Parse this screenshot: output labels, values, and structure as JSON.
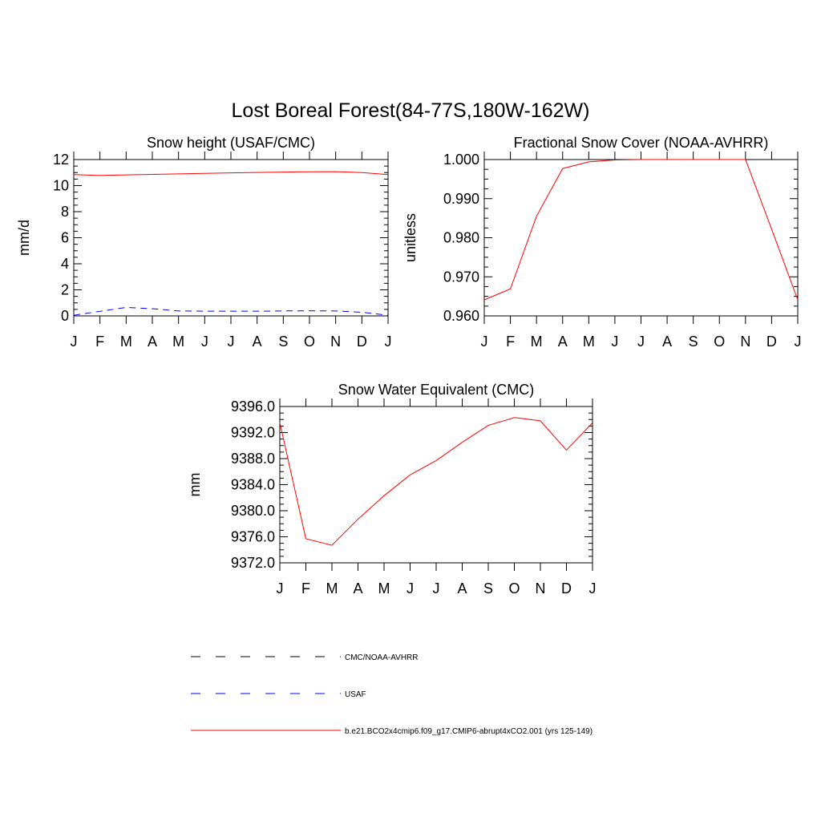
{
  "figure": {
    "title": "Lost Boreal Forest(84-77S,180W-162W)"
  },
  "colors": {
    "model": "#ff0000",
    "usaf": "#0000ff",
    "cmc": "#000000"
  },
  "chart_data": [
    {
      "type": "line",
      "title": "Snow height (USAF/CMC)",
      "xlabel": "",
      "ylabel": "mm/d",
      "categories": [
        "J",
        "F",
        "M",
        "A",
        "M",
        "J",
        "J",
        "A",
        "S",
        "O",
        "N",
        "D",
        "J"
      ],
      "ylim": [
        0,
        12
      ],
      "yticks": [
        0,
        2,
        4,
        6,
        8,
        10,
        12
      ],
      "ytick_labels": [
        "0",
        "2",
        "4",
        "6",
        "8",
        "10",
        "12"
      ],
      "series": [
        {
          "name": "b.e21.BCO2x4cmip6.f09_g17.CMIP6-abrupt4xCO2.001 (yrs 125-149)",
          "style": "solid",
          "color": "#ff0000",
          "values": [
            10.85,
            10.78,
            10.82,
            10.86,
            10.9,
            10.94,
            10.98,
            11.01,
            11.04,
            11.06,
            11.07,
            11.0,
            10.85
          ]
        },
        {
          "name": "USAF",
          "style": "dashed",
          "color": "#0000ff",
          "values": [
            0.05,
            0.35,
            0.65,
            0.55,
            0.38,
            0.36,
            0.36,
            0.36,
            0.38,
            0.39,
            0.38,
            0.28,
            0.05
          ]
        }
      ]
    },
    {
      "type": "line",
      "title": "Fractional Snow Cover (NOAA-AVHRR)",
      "xlabel": "",
      "ylabel": "unitless",
      "categories": [
        "J",
        "F",
        "M",
        "A",
        "M",
        "J",
        "J",
        "A",
        "S",
        "O",
        "N",
        "D",
        "J"
      ],
      "ylim": [
        0.96,
        1.0
      ],
      "yticks": [
        0.96,
        0.97,
        0.98,
        0.99,
        1.0
      ],
      "ytick_labels": [
        "0.960",
        "0.970",
        "0.980",
        "0.990",
        "1.000"
      ],
      "series": [
        {
          "name": "b.e21.BCO2x4cmip6.f09_g17.CMIP6-abrupt4xCO2.001 (yrs 125-149)",
          "style": "solid",
          "color": "#ff0000",
          "values": [
            0.9641,
            0.9669,
            0.9855,
            0.9977,
            0.9994,
            0.9999,
            1.0,
            1.0,
            1.0,
            1.0,
            1.0,
            0.9822,
            0.9641
          ]
        }
      ]
    },
    {
      "type": "line",
      "title": "Snow Water Equivalent (CMC)",
      "xlabel": "",
      "ylabel": "mm",
      "categories": [
        "J",
        "F",
        "M",
        "A",
        "M",
        "J",
        "J",
        "A",
        "S",
        "O",
        "N",
        "D",
        "J"
      ],
      "ylim": [
        9372,
        9396
      ],
      "yticks": [
        9372,
        9376,
        9380,
        9384,
        9388,
        9392,
        9396
      ],
      "ytick_labels": [
        "9372.0",
        "9376.0",
        "9380.0",
        "9384.0",
        "9388.0",
        "9392.0",
        "9396.0"
      ],
      "series": [
        {
          "name": "b.e21.BCO2x4cmip6.f09_g17.CMIP6-abrupt4xCO2.001 (yrs 125-149)",
          "style": "solid",
          "color": "#ff0000",
          "values": [
            9393.5,
            9375.7,
            9374.7,
            9378.7,
            9382.3,
            9385.5,
            9387.7,
            9390.5,
            9393.1,
            9394.3,
            9393.8,
            9389.3,
            9393.5
          ]
        }
      ]
    }
  ],
  "legend": {
    "items": [
      {
        "label": "CMC/NOAA-AVHRR",
        "style": "dashed",
        "color": "#000000"
      },
      {
        "label": "USAF",
        "style": "dashed",
        "color": "#0000ff"
      },
      {
        "label": "b.e21.BCO2x4cmip6.f09_g17.CMIP6-abrupt4xCO2.001 (yrs 125-149)",
        "style": "solid",
        "color": "#ff0000"
      }
    ]
  }
}
